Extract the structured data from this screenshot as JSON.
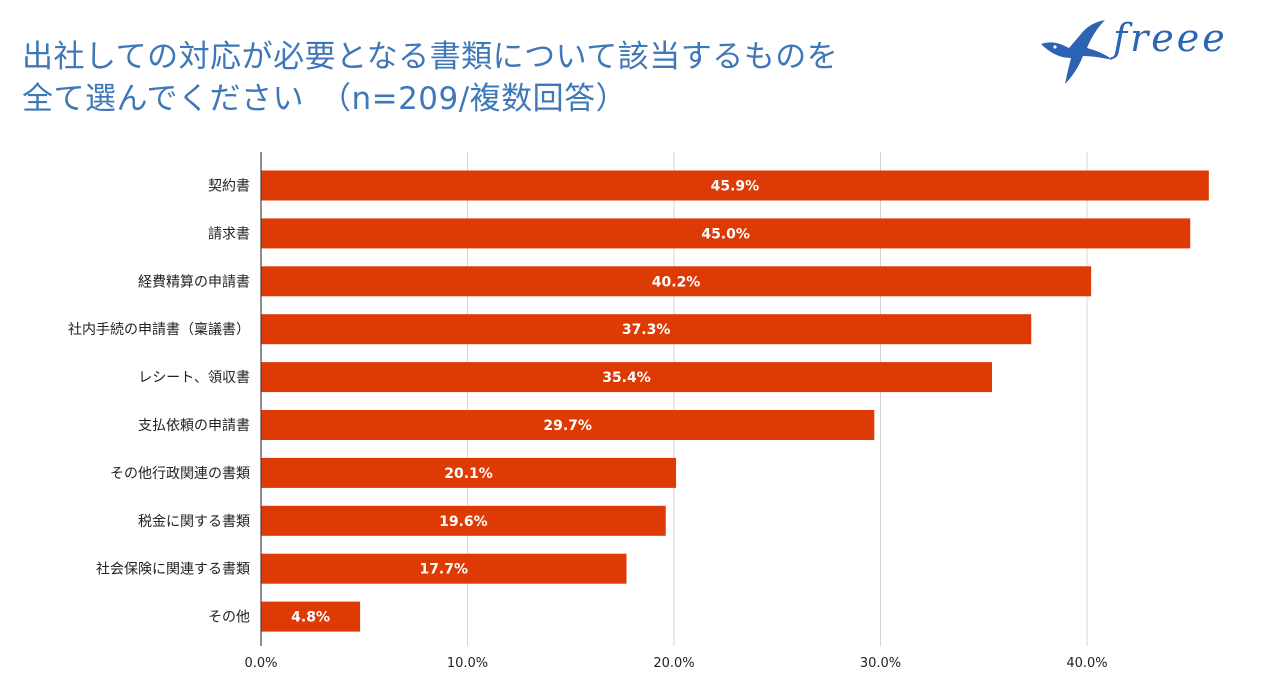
{
  "title": {
    "line1": "出社しての対応が必要となる書類について該当するものを",
    "line2": "全て選んでください　（n=209/複数回答）"
  },
  "logo": {
    "text": "freee",
    "icon": "swallow-bird-icon"
  },
  "colors": {
    "bar": "#dd3a06",
    "title": "#3f78b9",
    "logo": "#2d63b3",
    "grid": "#d4d4d4",
    "axis": "#444444",
    "text": "#222222"
  },
  "chart_data": {
    "type": "bar",
    "orientation": "horizontal",
    "title": "出社しての対応が必要となる書類について該当するものを全て選んでください　（n=209/複数回答）",
    "xlabel": "",
    "ylabel": "",
    "categories": [
      "契約書",
      "請求書",
      "経費精算の申請書",
      "社内手続の申請書（稟議書）",
      "レシート、領収書",
      "支払依頼の申請書",
      "その他行政関連の書類",
      "税金に関する書類",
      "社会保険に関連する書類",
      "その他"
    ],
    "values": [
      45.9,
      45.0,
      40.2,
      37.3,
      35.4,
      29.7,
      20.1,
      19.6,
      17.7,
      4.8
    ],
    "value_labels": [
      "45.9%",
      "45.0%",
      "40.2%",
      "37.3%",
      "35.4%",
      "29.7%",
      "20.1%",
      "19.6%",
      "17.7%",
      "4.8%"
    ],
    "xlim": [
      0,
      46
    ],
    "x_ticks": [
      0,
      10,
      20,
      30,
      40
    ],
    "x_tick_labels": [
      "0.0%",
      "10.0%",
      "20.0%",
      "30.0%",
      "40.0%"
    ],
    "grid": true,
    "legend": "none"
  }
}
